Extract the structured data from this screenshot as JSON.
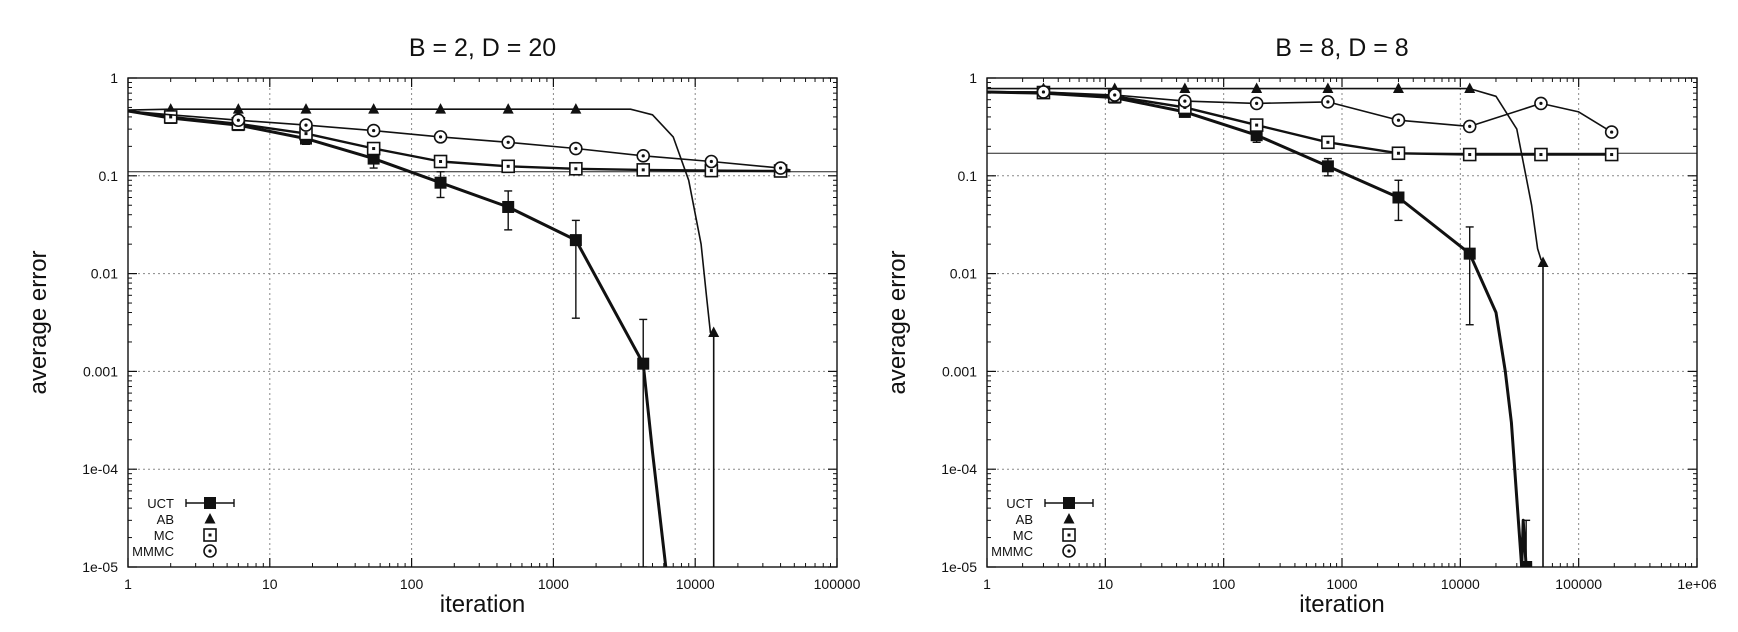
{
  "chart_data": [
    {
      "type": "line",
      "title": "B = 2, D = 20",
      "xlabel": "iteration",
      "ylabel": "average error",
      "xscale": "log",
      "yscale": "log",
      "xlim": [
        1,
        100000
      ],
      "ylim": [
        1e-05,
        1
      ],
      "xticks": [
        1,
        10,
        100,
        1000,
        10000,
        100000
      ],
      "xtick_labels": [
        "1",
        "10",
        "100",
        "1000",
        "10000",
        "100000"
      ],
      "yticks": [
        1e-05,
        0.0001,
        0.001,
        0.01,
        0.1,
        1
      ],
      "ytick_labels": [
        "1e-05",
        "1e-04",
        "0.001",
        "0.01",
        "0.1",
        "1"
      ],
      "grid": true,
      "legend_position": "bottom-left",
      "reference_line": 0.11,
      "series": [
        {
          "name": "UCT",
          "marker": "filled-square",
          "x": [
            1,
            2,
            6,
            18,
            54,
            160,
            480,
            1440,
            4300,
            5000,
            6200
          ],
          "y": [
            0.46,
            0.39,
            0.33,
            0.24,
            0.15,
            0.085,
            0.048,
            0.022,
            0.0012,
            0.00015,
            1e-05
          ],
          "marked_x": [
            2,
            6,
            18,
            54,
            160,
            480,
            1440,
            4300
          ],
          "marked_y": [
            0.39,
            0.33,
            0.24,
            0.15,
            0.085,
            0.048,
            0.022,
            0.0012
          ],
          "err_low": [
            0.36,
            0.3,
            0.21,
            0.12,
            0.06,
            0.028,
            0.0035,
            1e-05
          ],
          "err_high": [
            0.42,
            0.36,
            0.27,
            0.18,
            0.11,
            0.07,
            0.035,
            0.0034
          ]
        },
        {
          "name": "AB",
          "marker": "filled-triangle",
          "x": [
            1,
            2,
            6,
            18,
            54,
            160,
            480,
            1440,
            3500,
            5000,
            7000,
            9000,
            11000,
            12000,
            12800,
            13500,
            13500
          ],
          "y": [
            0.47,
            0.48,
            0.48,
            0.48,
            0.48,
            0.48,
            0.48,
            0.48,
            0.48,
            0.42,
            0.25,
            0.09,
            0.02,
            0.006,
            0.0025,
            0.0025,
            1e-05
          ],
          "marked_x": [
            2,
            6,
            18,
            54,
            160,
            480,
            1440,
            13500
          ],
          "marked_y": [
            0.48,
            0.48,
            0.48,
            0.48,
            0.48,
            0.48,
            0.48,
            0.0025
          ]
        },
        {
          "name": "MC",
          "marker": "open-square",
          "x": [
            1,
            2,
            6,
            18,
            54,
            160,
            480,
            1440,
            4300,
            13000,
            40000,
            47000
          ],
          "y": [
            0.46,
            0.4,
            0.34,
            0.27,
            0.19,
            0.14,
            0.125,
            0.118,
            0.115,
            0.113,
            0.112,
            0.112
          ],
          "marked_x": [
            2,
            6,
            18,
            54,
            160,
            480,
            1440,
            4300,
            13000,
            40000
          ],
          "marked_y": [
            0.4,
            0.34,
            0.27,
            0.19,
            0.14,
            0.125,
            0.118,
            0.115,
            0.113,
            0.112
          ]
        },
        {
          "name": "MMMC",
          "marker": "open-circle",
          "x": [
            1,
            2,
            6,
            18,
            54,
            160,
            480,
            1440,
            4300,
            13000,
            40000,
            47000
          ],
          "y": [
            0.46,
            0.42,
            0.37,
            0.33,
            0.29,
            0.25,
            0.22,
            0.19,
            0.16,
            0.14,
            0.12,
            0.115
          ],
          "marked_x": [
            6,
            18,
            54,
            160,
            480,
            1440,
            4300,
            13000,
            40000
          ],
          "marked_y": [
            0.37,
            0.33,
            0.29,
            0.25,
            0.22,
            0.19,
            0.16,
            0.14,
            0.12
          ]
        }
      ]
    },
    {
      "type": "line",
      "title": "B = 8, D = 8",
      "xlabel": "iteration",
      "ylabel": "average error",
      "xscale": "log",
      "yscale": "log",
      "xlim": [
        1,
        1000000
      ],
      "ylim": [
        1e-05,
        1
      ],
      "xticks": [
        1,
        10,
        100,
        1000,
        10000,
        100000,
        1000000
      ],
      "xtick_labels": [
        "1",
        "10",
        "100",
        "1000",
        "10000",
        "100000",
        "1e+06"
      ],
      "yticks": [
        1e-05,
        0.0001,
        0.001,
        0.01,
        0.1,
        1
      ],
      "ytick_labels": [
        "1e-05",
        "1e-04",
        "0.001",
        "0.01",
        "0.1",
        "1"
      ],
      "grid": true,
      "legend_position": "bottom-left",
      "reference_line": 0.17,
      "series": [
        {
          "name": "UCT",
          "marker": "filled-square",
          "x": [
            1,
            3,
            12,
            47,
            190,
            760,
            3000,
            12000,
            20000,
            24000,
            27000,
            30000,
            33000,
            34000,
            36000,
            38000
          ],
          "y": [
            0.72,
            0.7,
            0.63,
            0.45,
            0.26,
            0.125,
            0.06,
            0.016,
            0.004,
            0.001,
            0.0003,
            5e-05,
            1e-05,
            3e-05,
            1e-05,
            1e-05
          ],
          "marked_x": [
            3,
            12,
            47,
            190,
            760,
            3000,
            12000,
            36000
          ],
          "marked_y": [
            0.7,
            0.63,
            0.45,
            0.26,
            0.125,
            0.06,
            0.016,
            1e-05
          ],
          "err_low": [
            0.62,
            0.57,
            0.4,
            0.22,
            0.1,
            0.035,
            0.003,
            1e-05
          ],
          "err_high": [
            0.78,
            0.7,
            0.5,
            0.3,
            0.15,
            0.09,
            0.03,
            3e-05
          ]
        },
        {
          "name": "AB",
          "marker": "filled-triangle",
          "x": [
            1,
            3,
            12,
            47,
            190,
            760,
            3000,
            12000,
            20000,
            30000,
            40000,
            45000,
            48000,
            50000,
            50000
          ],
          "y": [
            0.78,
            0.78,
            0.78,
            0.78,
            0.78,
            0.78,
            0.78,
            0.78,
            0.65,
            0.3,
            0.05,
            0.018,
            0.014,
            0.013,
            1e-05
          ],
          "marked_x": [
            3,
            12,
            47,
            190,
            760,
            3000,
            12000,
            50000
          ],
          "marked_y": [
            0.78,
            0.78,
            0.78,
            0.78,
            0.78,
            0.78,
            0.78,
            0.013
          ]
        },
        {
          "name": "MC",
          "marker": "open-square",
          "x": [
            1,
            3,
            12,
            47,
            190,
            760,
            3000,
            12000,
            48000,
            190000
          ],
          "y": [
            0.72,
            0.71,
            0.65,
            0.5,
            0.33,
            0.22,
            0.17,
            0.165,
            0.165,
            0.165
          ],
          "marked_x": [
            3,
            12,
            47,
            190,
            760,
            3000,
            12000,
            48000,
            190000
          ],
          "marked_y": [
            0.71,
            0.65,
            0.5,
            0.33,
            0.22,
            0.17,
            0.165,
            0.165,
            0.165
          ]
        },
        {
          "name": "MMMC",
          "marker": "open-circle",
          "x": [
            1,
            3,
            12,
            47,
            190,
            760,
            3000,
            12000,
            48000,
            100000,
            190000
          ],
          "y": [
            0.72,
            0.72,
            0.67,
            0.58,
            0.55,
            0.57,
            0.37,
            0.32,
            0.55,
            0.45,
            0.28
          ],
          "marked_x": [
            3,
            12,
            47,
            190,
            760,
            3000,
            12000,
            48000,
            190000
          ],
          "marked_y": [
            0.72,
            0.67,
            0.58,
            0.55,
            0.57,
            0.37,
            0.32,
            0.55,
            0.28
          ]
        }
      ]
    }
  ]
}
